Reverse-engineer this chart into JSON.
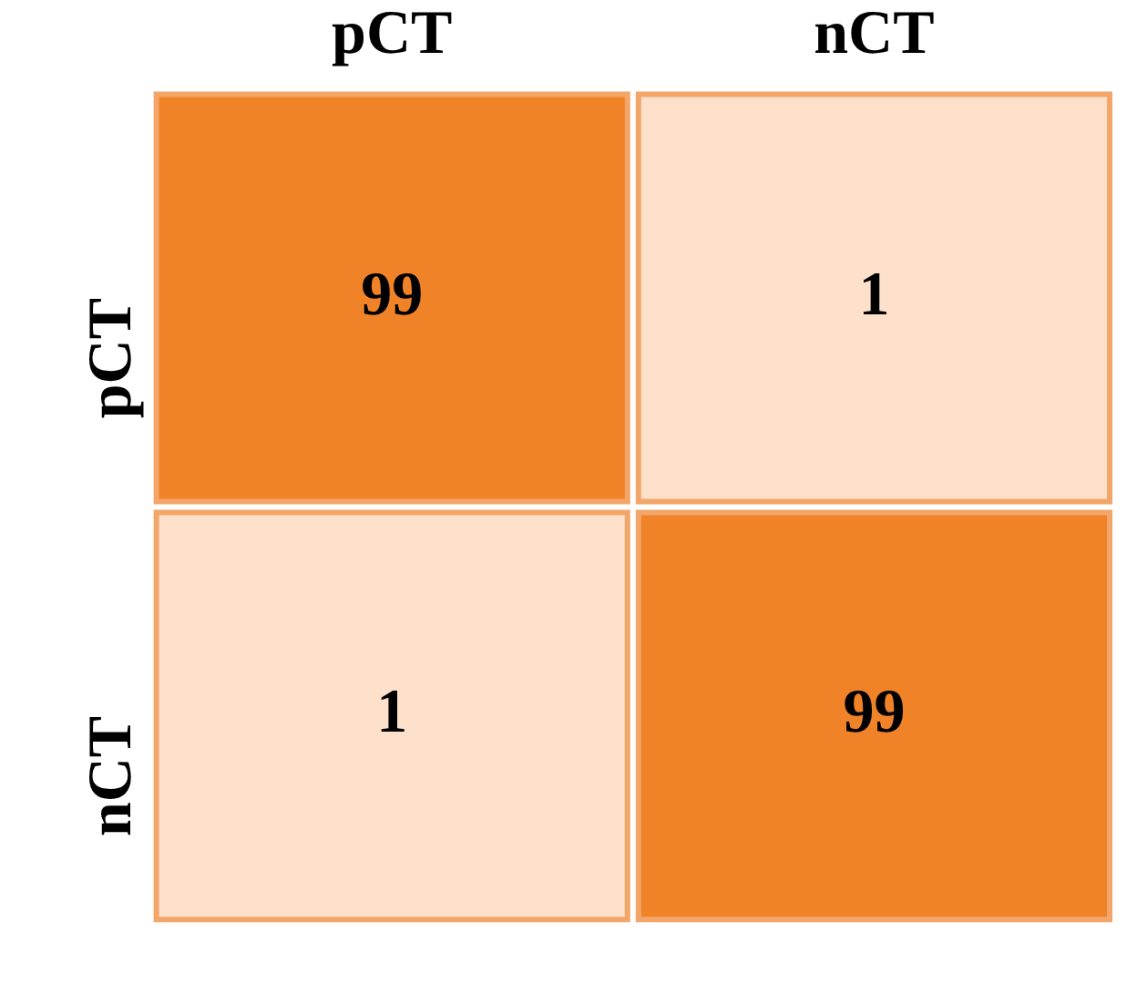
{
  "chart_data": {
    "type": "heatmap",
    "categories": [
      "pCT",
      "nCT"
    ],
    "y_categories": [
      "pCT",
      "nCT"
    ],
    "cells": [
      [
        99,
        1
      ],
      [
        1,
        99
      ]
    ],
    "data_labels": true
  }
}
